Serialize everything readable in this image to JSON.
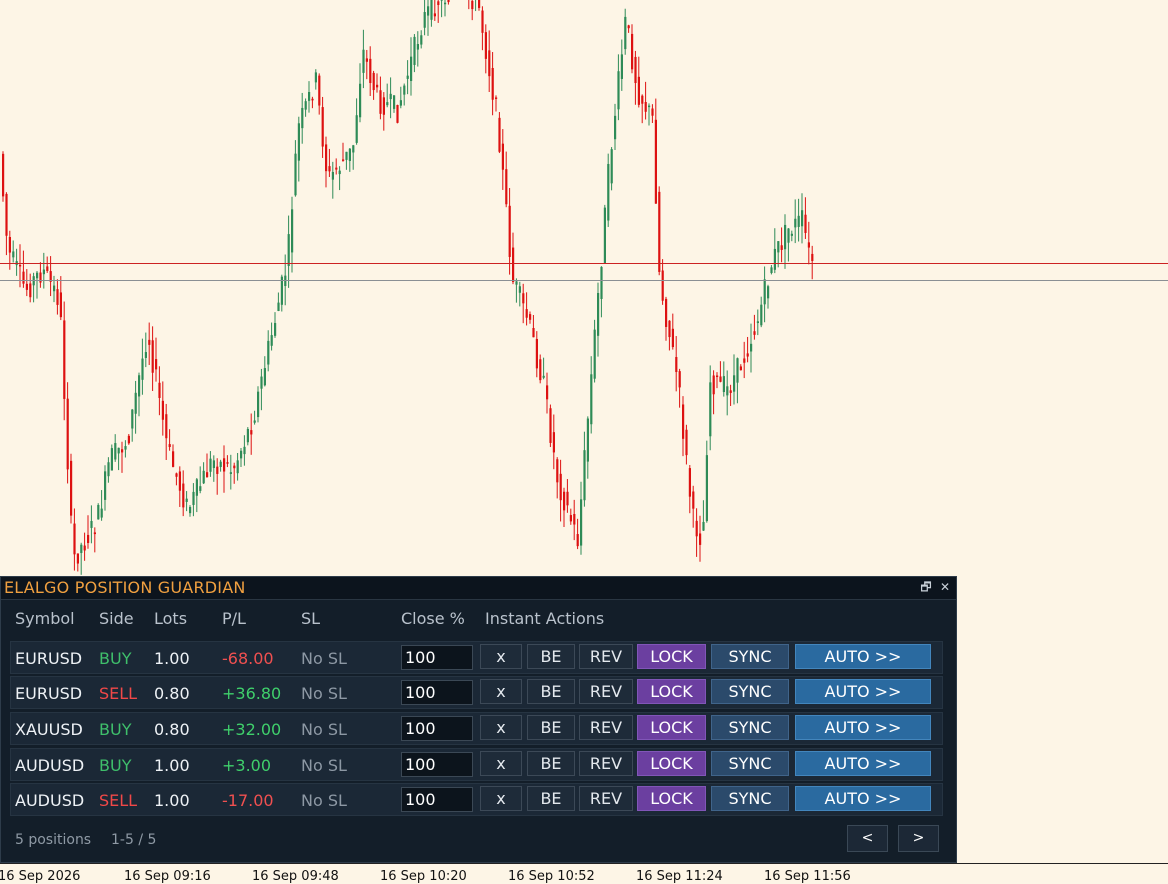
{
  "panel": {
    "title": "ELALGO POSITION GUARDIAN",
    "restore_icon": "restore-window-icon",
    "close_icon": "close-icon",
    "restore_glyph": "🗗",
    "close_glyph": "✕",
    "colors": {
      "title": "#f0a040",
      "buy": "#3fbf6b",
      "sell": "#f04848",
      "profit": "#3fcf6b",
      "loss": "#f05050",
      "lock": "#6b3fa0",
      "sync": "#2b4a6b",
      "auto": "#2a6aa0"
    },
    "headers": {
      "symbol": "Symbol",
      "side": "Side",
      "lots": "Lots",
      "pl": "P/L",
      "sl": "SL",
      "close_pct": "Close %",
      "actions": "Instant Actions"
    },
    "buttons": {
      "x": "x",
      "be": "BE",
      "rev": "REV",
      "lock": "LOCK",
      "sync": "SYNC",
      "auto": "AUTO >>"
    },
    "positions": [
      {
        "symbol": "EURUSD",
        "side": "BUY",
        "lots": "1.00",
        "pl": "-68.00",
        "sl": "No SL",
        "close_pct": "100"
      },
      {
        "symbol": "EURUSD",
        "side": "SELL",
        "lots": "0.80",
        "pl": "+36.80",
        "sl": "No SL",
        "close_pct": "100"
      },
      {
        "symbol": "XAUUSD",
        "side": "BUY",
        "lots": "0.80",
        "pl": "+32.00",
        "sl": "No SL",
        "close_pct": "100"
      },
      {
        "symbol": "AUDUSD",
        "side": "BUY",
        "lots": "1.00",
        "pl": "+3.00",
        "sl": "No SL",
        "close_pct": "100"
      },
      {
        "symbol": "AUDUSD",
        "side": "SELL",
        "lots": "1.00",
        "pl": "-17.00",
        "sl": "No SL",
        "close_pct": "100"
      }
    ],
    "footer": {
      "count": "5 positions",
      "range": "1-5 / 5",
      "prev": "<",
      "next": ">"
    }
  },
  "chart": {
    "bull_color": "#2e8b57",
    "bear_color": "#dd1111",
    "price_line_color": "#cc2222",
    "x_labels": [
      "16 Sep 2026",
      "16 Sep 09:16",
      "16 Sep 09:48",
      "16 Sep 10:20",
      "16 Sep 10:52",
      "16 Sep 11:24",
      "16 Sep 11:56"
    ]
  }
}
